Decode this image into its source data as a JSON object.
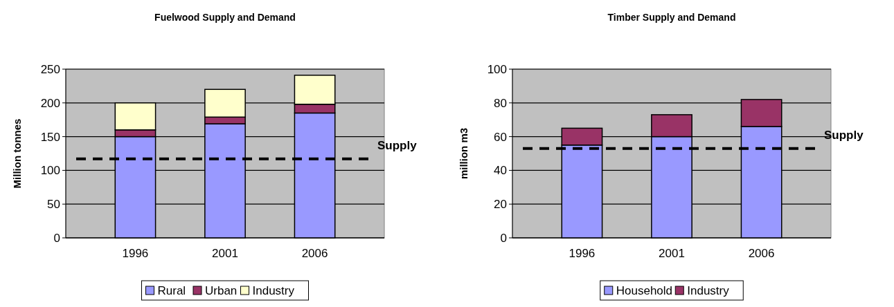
{
  "chart_data": [
    {
      "type": "bar",
      "title": "Fuelwood Supply and Demand",
      "ylabel": "Million tonnes",
      "categories": [
        "1996",
        "2001",
        "2006"
      ],
      "stacked": true,
      "ylim": [
        0,
        250
      ],
      "yticks": [
        0,
        50,
        100,
        150,
        200,
        250
      ],
      "grid": "y",
      "legend": "bottom",
      "series": [
        {
          "name": "Rural",
          "color": "#9999ff",
          "values": [
            150,
            169,
            185
          ]
        },
        {
          "name": "Urban",
          "color": "#993366",
          "values": [
            10,
            10,
            13
          ]
        },
        {
          "name": "Industry",
          "color": "#ffffcc",
          "values": [
            40,
            41,
            43
          ]
        }
      ],
      "ref_lines": [
        {
          "axis": "y",
          "value": 117,
          "label": "Supply",
          "color": "#000000",
          "line_style": "dashed"
        }
      ]
    },
    {
      "type": "bar",
      "title": "Timber Supply and Demand",
      "ylabel": "million m3",
      "categories": [
        "1996",
        "2001",
        "2006"
      ],
      "stacked": true,
      "ylim": [
        0,
        100
      ],
      "yticks": [
        0,
        20,
        40,
        60,
        80,
        100
      ],
      "grid": "y",
      "legend": "bottom",
      "series": [
        {
          "name": "Household",
          "color": "#9999ff",
          "values": [
            55,
            60,
            66
          ]
        },
        {
          "name": "Industry",
          "color": "#993366",
          "values": [
            10,
            13,
            16
          ]
        }
      ],
      "ref_lines": [
        {
          "axis": "y",
          "value": 53,
          "label": "Supply",
          "color": "#000000",
          "line_style": "dashed"
        }
      ]
    }
  ]
}
